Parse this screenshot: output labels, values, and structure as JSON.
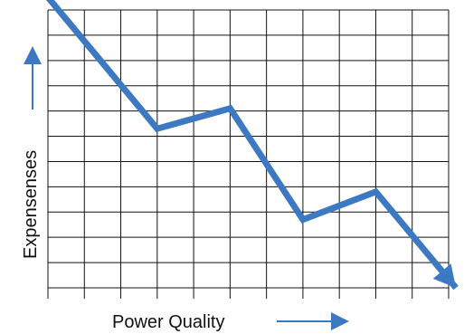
{
  "chart_data": {
    "type": "line",
    "title": "",
    "xlabel": "Power Quality",
    "ylabel": "Expensenses",
    "grid": true,
    "xlim": [
      0,
      11
    ],
    "ylim": [
      0,
      11
    ],
    "series": [
      {
        "x": [
          0,
          3,
          5,
          7,
          9,
          11.2
        ],
        "values": [
          11.5,
          6.3,
          7.1,
          2.7,
          3.8,
          0
        ]
      }
    ],
    "colors": {
      "line": "#3c79c2",
      "grid": "#111111",
      "axis_arrow": "#3c79c2"
    }
  }
}
